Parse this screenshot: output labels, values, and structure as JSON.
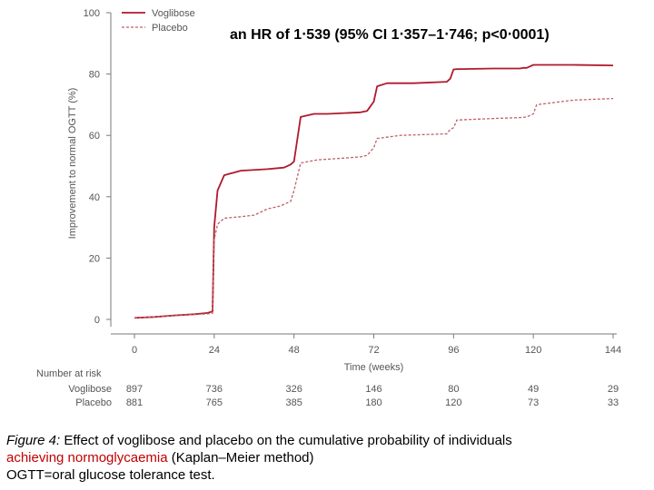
{
  "chart_data": {
    "type": "line",
    "title": "",
    "xlabel": "Time (weeks)",
    "ylabel": "Improvement to normal OGTT (%)",
    "xlim": [
      0,
      144
    ],
    "ylim": [
      0,
      100
    ],
    "x_ticks": [
      "0",
      "24",
      "48",
      "72",
      "96",
      "120",
      "144"
    ],
    "y_ticks": [
      "0",
      "20",
      "40",
      "60",
      "80",
      "100"
    ],
    "legend": {
      "placement": "top-left",
      "entries": [
        "Voglibose",
        "Placebo"
      ]
    },
    "series": [
      {
        "name": "Voglibose",
        "color": "#b0192b",
        "style": "solid",
        "x": [
          0,
          6,
          12,
          18,
          22,
          23.5,
          24,
          25,
          27,
          32,
          40,
          45,
          47,
          48,
          50,
          54,
          58,
          68,
          70,
          72,
          73,
          76,
          84,
          94,
          95,
          96,
          97,
          108,
          116,
          117,
          118,
          119,
          120,
          132,
          144
        ],
        "y": [
          0.5,
          0.8,
          1.3,
          1.7,
          2.1,
          2.6,
          30,
          42,
          47,
          48.5,
          49,
          49.5,
          50.5,
          51.5,
          66,
          67,
          67,
          67.5,
          68,
          71,
          76,
          77,
          77,
          77.5,
          78.5,
          81.5,
          81.6,
          81.8,
          81.8,
          82,
          82,
          82.5,
          83,
          83,
          82.8
        ]
      },
      {
        "name": "Placebo",
        "color": "#c0606b",
        "style": "dashed",
        "x": [
          0,
          6,
          12,
          18,
          22,
          23.5,
          24,
          25,
          27,
          32,
          36,
          40,
          44,
          47,
          48,
          50,
          55,
          62,
          68,
          70,
          72,
          73,
          80,
          94,
          95,
          96,
          97,
          108,
          116,
          118,
          120,
          121,
          132,
          144
        ],
        "y": [
          0.5,
          0.8,
          1.2,
          1.6,
          1.8,
          2,
          26,
          31,
          33,
          33.5,
          34,
          36,
          37,
          38.5,
          42,
          51,
          52,
          52.5,
          53,
          53.5,
          56,
          59,
          60,
          60.5,
          62,
          62.5,
          65,
          65.5,
          65.8,
          66,
          67,
          70,
          71.5,
          72
        ]
      }
    ],
    "at_risk": {
      "header": "Number at risk",
      "rows": [
        {
          "label": "Voglibose",
          "values": [
            "897",
            "736",
            "326",
            "146",
            "80",
            "49",
            "29"
          ]
        },
        {
          "label": "Placebo",
          "values": [
            "881",
            "765",
            "385",
            "180",
            "120",
            "73",
            "33"
          ]
        }
      ]
    }
  },
  "annotation": "an HR of 1‧539 (95% CI 1‧357–1‧746; p<0‧0001)",
  "caption": {
    "figure_label": "Figure 4:",
    "line1_rest": " Effect of voglibose and placebo on the cumulative probability of individuals",
    "line2_red": "achieving normoglycaemia",
    "line2_rest": " (Kaplan–Meier method)",
    "line3": "OGTT=oral glucose tolerance test."
  }
}
